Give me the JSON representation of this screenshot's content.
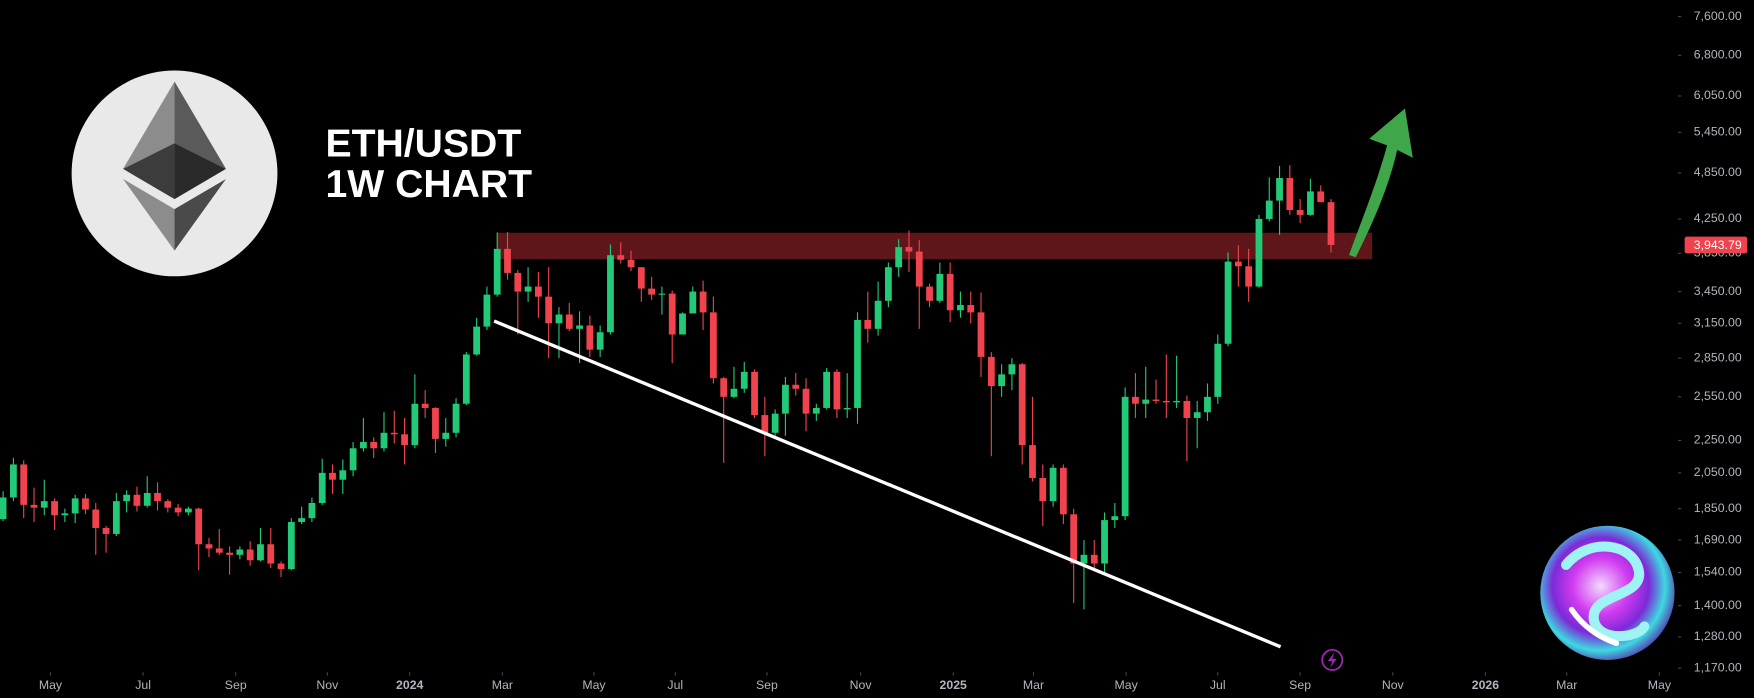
{
  "chart_data": {
    "type": "candlestick",
    "title": [
      "ETH/USDT",
      "1W CHART"
    ],
    "up_color": "#22c977",
    "down_color": "#f0434e",
    "log_scale": true,
    "grid": false,
    "ylim": [
      1160,
      7970
    ],
    "yticks": [
      {
        "value": 1170,
        "label": "1,170.00"
      },
      {
        "value": 1280,
        "label": "1,280.00"
      },
      {
        "value": 1400,
        "label": "1,400.00"
      },
      {
        "value": 1540,
        "label": "1,540.00"
      },
      {
        "value": 1690,
        "label": "1,690.00"
      },
      {
        "value": 1850,
        "label": "1,850.00"
      },
      {
        "value": 2050,
        "label": "2,050.00"
      },
      {
        "value": 2250,
        "label": "2,250.00"
      },
      {
        "value": 2550,
        "label": "2,550.00"
      },
      {
        "value": 2850,
        "label": "2,850.00"
      },
      {
        "value": 3150,
        "label": "3,150.00"
      },
      {
        "value": 3450,
        "label": "3,450.00"
      },
      {
        "value": 3850,
        "label": "3,850.00"
      },
      {
        "value": 4250,
        "label": "4,250.00"
      },
      {
        "value": 4850,
        "label": "4,850.00"
      },
      {
        "value": 5450,
        "label": "5,450.00"
      },
      {
        "value": 6050,
        "label": "6,050.00"
      },
      {
        "value": 6800,
        "label": "6,800.00"
      },
      {
        "value": 7600,
        "label": "7,600.00"
      }
    ],
    "xlim": [
      -0.3,
      162.7
    ],
    "xticks": [
      {
        "value": 4.6,
        "label": "May"
      },
      {
        "value": 13.6,
        "label": "Jul"
      },
      {
        "value": 22.6,
        "label": "Sep"
      },
      {
        "value": 31.5,
        "label": "Nov"
      },
      {
        "value": 39.5,
        "label": "2024"
      },
      {
        "value": 48.5,
        "label": "Mar"
      },
      {
        "value": 57.4,
        "label": "May"
      },
      {
        "value": 65.3,
        "label": "Jul"
      },
      {
        "value": 74.2,
        "label": "Sep"
      },
      {
        "value": 83.3,
        "label": "Nov"
      },
      {
        "value": 92.3,
        "label": "2025"
      },
      {
        "value": 100.1,
        "label": "Mar"
      },
      {
        "value": 109.1,
        "label": "May"
      },
      {
        "value": 118.0,
        "label": "Jul"
      },
      {
        "value": 126.0,
        "label": "Sep"
      },
      {
        "value": 135.0,
        "label": "Nov"
      },
      {
        "value": 144.0,
        "label": "2026"
      },
      {
        "value": 151.9,
        "label": "Mar"
      },
      {
        "value": 160.9,
        "label": "May"
      }
    ],
    "open": [
      1795,
      1910,
      2100,
      1870,
      1855,
      1890,
      1815,
      1825,
      1905,
      1845,
      1750,
      1720,
      1890,
      1925,
      1865,
      1935,
      1890,
      1855,
      1830,
      1850,
      1670,
      1650,
      1630,
      1620,
      1645,
      1595,
      1670,
      1580,
      1555,
      1780,
      1800,
      1880,
      2050,
      2010,
      2065,
      2200,
      2240,
      2200,
      2300,
      2290,
      2220,
      2500,
      2470,
      2260,
      2300,
      2500,
      2880,
      3120,
      3420,
      3900,
      3640,
      3450,
      3500,
      3400,
      3150,
      3230,
      3100,
      3130,
      2920,
      3070,
      3830,
      3780,
      3700,
      3480,
      3420,
      3430,
      3050,
      3240,
      3450,
      3250,
      2690,
      2550,
      2610,
      2740,
      2420,
      2300,
      2430,
      2640,
      2610,
      2430,
      2470,
      2740,
      2460,
      2470,
      3180,
      3100,
      3360,
      3700,
      3920,
      3870,
      3500,
      3360,
      3630,
      3270,
      3320,
      3250,
      2860,
      2630,
      2720,
      2800,
      2220,
      2020,
      1890,
      2080,
      1820,
      1580,
      1620,
      1580,
      1790,
      1810,
      2550,
      2500,
      2530,
      2520,
      2510,
      2520,
      2400,
      2440,
      2550,
      2970,
      3760,
      3710,
      3500,
      4250,
      4480,
      4780,
      4360,
      4300,
      4600,
      4460
    ],
    "high": [
      1945,
      2140,
      2125,
      1965,
      2010,
      1905,
      1850,
      1925,
      1930,
      1880,
      1760,
      1935,
      1950,
      1970,
      2030,
      1995,
      1900,
      1875,
      1860,
      1855,
      1700,
      1745,
      1660,
      1660,
      1685,
      1750,
      1750,
      1590,
      1800,
      1860,
      1910,
      2135,
      2100,
      2130,
      2240,
      2400,
      2270,
      2440,
      2450,
      2400,
      2720,
      2600,
      2475,
      2400,
      2540,
      2900,
      3200,
      3500,
      4090,
      4095,
      3670,
      3700,
      3650,
      3700,
      3300,
      3340,
      3260,
      3220,
      3130,
      3950,
      3975,
      3880,
      3700,
      3600,
      3500,
      3460,
      3250,
      3500,
      3560,
      3400,
      2700,
      2780,
      2820,
      2760,
      2550,
      2460,
      2700,
      2730,
      2690,
      2500,
      2770,
      2760,
      2730,
      3250,
      3450,
      3550,
      3750,
      4010,
      4110,
      4000,
      3530,
      3750,
      3750,
      3450,
      3450,
      3440,
      2900,
      2800,
      2850,
      2810,
      2550,
      2100,
      2100,
      2100,
      1850,
      1690,
      1690,
      1830,
      1880,
      2620,
      2730,
      2780,
      2680,
      2880,
      2870,
      2560,
      2520,
      2650,
      3050,
      3860,
      3940,
      3900,
      4300,
      4790,
      4950,
      4960,
      4500,
      4770,
      4680,
      4500
    ],
    "low": [
      1785,
      1890,
      1800,
      1780,
      1815,
      1740,
      1780,
      1775,
      1820,
      1620,
      1630,
      1710,
      1830,
      1835,
      1855,
      1840,
      1830,
      1810,
      1815,
      1550,
      1610,
      1620,
      1530,
      1600,
      1570,
      1590,
      1560,
      1520,
      1550,
      1770,
      1780,
      1870,
      1930,
      1930,
      2030,
      2180,
      2140,
      2180,
      2230,
      2100,
      2200,
      2400,
      2170,
      2210,
      2270,
      2490,
      2870,
      3090,
      3400,
      3570,
      3050,
      3350,
      3200,
      2850,
      2850,
      3080,
      2810,
      2860,
      2860,
      3050,
      3740,
      3660,
      3350,
      3370,
      3230,
      2810,
      3050,
      3240,
      3090,
      2650,
      2110,
      2540,
      2580,
      2400,
      2150,
      2280,
      2280,
      2560,
      2310,
      2380,
      2460,
      2400,
      2400,
      2360,
      2980,
      3040,
      3300,
      3600,
      3650,
      3100,
      3300,
      3340,
      3160,
      3200,
      3150,
      2700,
      2150,
      2550,
      2600,
      2100,
      2000,
      1760,
      1860,
      1770,
      1410,
      1385,
      1560,
      1540,
      1750,
      1790,
      2400,
      2400,
      2500,
      2400,
      2470,
      2120,
      2200,
      2380,
      2500,
      2950,
      3500,
      3350,
      3490,
      4220,
      4060,
      4300,
      4200,
      4290,
      4460,
      3860
    ],
    "close": [
      1910,
      2100,
      1870,
      1855,
      1890,
      1815,
      1825,
      1905,
      1845,
      1750,
      1720,
      1890,
      1925,
      1865,
      1935,
      1890,
      1855,
      1830,
      1850,
      1670,
      1650,
      1630,
      1620,
      1645,
      1595,
      1670,
      1580,
      1555,
      1780,
      1800,
      1880,
      2050,
      2010,
      2065,
      2200,
      2240,
      2200,
      2300,
      2290,
      2220,
      2500,
      2470,
      2260,
      2300,
      2500,
      2880,
      3120,
      3420,
      3900,
      3640,
      3450,
      3500,
      3400,
      3150,
      3230,
      3100,
      3130,
      2920,
      3070,
      3830,
      3780,
      3700,
      3480,
      3420,
      3430,
      3050,
      3240,
      3450,
      3250,
      2690,
      2550,
      2610,
      2740,
      2420,
      2300,
      2430,
      2640,
      2610,
      2430,
      2470,
      2740,
      2460,
      2470,
      3180,
      3100,
      3360,
      3700,
      3920,
      3870,
      3500,
      3360,
      3630,
      3270,
      3320,
      3250,
      2860,
      2630,
      2720,
      2800,
      2220,
      2020,
      1890,
      2080,
      1820,
      1580,
      1620,
      1580,
      1790,
      1810,
      2550,
      2500,
      2530,
      2520,
      2510,
      2520,
      2400,
      2440,
      2550,
      2970,
      3760,
      3710,
      3500,
      4250,
      4480,
      4780,
      4360,
      4300,
      4600,
      4460,
      3943.79
    ],
    "last_price_label": "3,943.79",
    "resistance_zone": {
      "low": 3785,
      "high": 4085,
      "start": 48,
      "end": 133,
      "color": "#6e1a1f"
    },
    "trendline": {
      "start": {
        "x": 47.7,
        "y": 3170
      },
      "end": {
        "x": 124.1,
        "y": 1244
      },
      "color": "#ffffff"
    }
  }
}
